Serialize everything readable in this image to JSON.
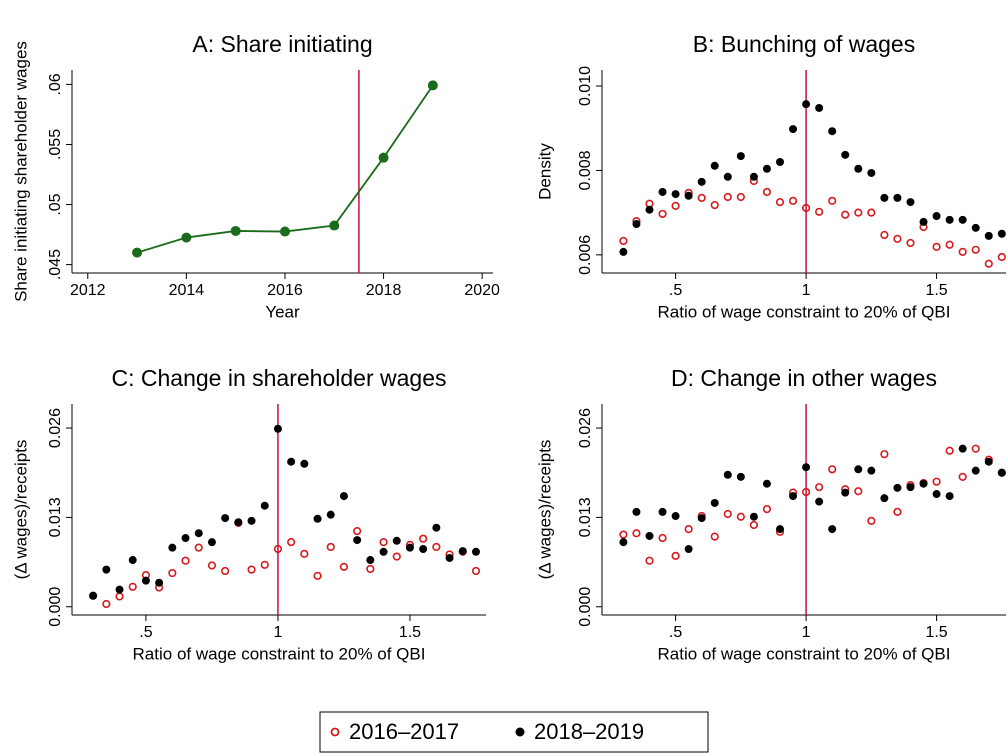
{
  "chart_data": [
    {
      "type": "line",
      "title": "A: Share initiating",
      "x_label": "Year",
      "y_label": "Share initiating shareholder wages",
      "x": [
        2013,
        2014,
        2015,
        2016,
        2017,
        2018,
        2019
      ],
      "series": [
        {
          "name": "Share initiating",
          "color": "#1a6b1a",
          "values": [
            0.046,
            0.04725,
            0.0478,
            0.04775,
            0.04825,
            0.0539,
            0.05992
          ]
        }
      ],
      "xlim": [
        2011.68,
        2020.22
      ],
      "xticks": [
        2012,
        2014,
        2016,
        2018,
        2020
      ],
      "ylim": [
        0.0443,
        0.0612
      ],
      "yticks": [
        {
          "value": 0.045,
          "label": ".045"
        },
        {
          "value": 0.05,
          "label": ".05"
        },
        {
          "value": 0.055,
          "label": ".055"
        },
        {
          "value": 0.06,
          "label": ".06"
        }
      ],
      "vline": 2017.5,
      "vline_color": "#c8103a"
    },
    {
      "type": "scatter",
      "title": "B: Bunching of wages",
      "x_label": "Ratio of wage constraint to 20% of QBI",
      "y_label": "Density",
      "x": [
        0.3,
        0.35,
        0.4,
        0.45,
        0.5,
        0.55,
        0.6,
        0.65,
        0.7,
        0.75,
        0.8,
        0.85,
        0.9,
        0.95,
        1.0,
        1.05,
        1.1,
        1.15,
        1.2,
        1.25,
        1.3,
        1.35,
        1.4,
        1.45,
        1.5,
        1.55,
        1.6,
        1.65,
        1.7,
        1.75
      ],
      "series": [
        {
          "name": "2016–2017",
          "color": "#d7191c",
          "values": [
            0.00633,
            0.0068,
            0.00721,
            0.00697,
            0.00716,
            0.00747,
            0.00735,
            0.00718,
            0.00737,
            0.00737,
            0.00775,
            0.00749,
            0.00725,
            0.00728,
            0.00711,
            0.00702,
            0.00728,
            0.00695,
            0.007,
            0.007,
            0.00647,
            0.00638,
            0.00628,
            0.00666,
            0.00619,
            0.00624,
            0.00607,
            0.00612,
            0.00579,
            0.00595
          ]
        },
        {
          "name": "2018–2019",
          "color": "#000000",
          "values": [
            0.00607,
            0.00673,
            0.00707,
            0.00749,
            0.00744,
            0.0074,
            0.00773,
            0.00811,
            0.00785,
            0.00834,
            0.00785,
            0.00804,
            0.0082,
            0.00898,
            0.00957,
            0.00948,
            0.00893,
            0.00837,
            0.00804,
            0.00794,
            0.00735,
            0.00735,
            0.00725,
            0.00678,
            0.00692,
            0.00683,
            0.00683,
            0.00664,
            0.00645,
            0.0065
          ]
        }
      ],
      "xlim": [
        0.218,
        1.766
      ],
      "xticks": [
        {
          "value": 0.5,
          "label": ".5"
        },
        1,
        1.5
      ],
      "ylim": [
        0.00557,
        0.01038
      ],
      "yticks": [
        {
          "value": 0.006,
          "label": "0.006"
        },
        {
          "value": 0.008,
          "label": "0.008"
        },
        {
          "value": 0.01,
          "label": "0.010"
        }
      ],
      "vline": 1,
      "vline_color": "#c8103a"
    },
    {
      "type": "scatter",
      "title": "C: Change in shareholder wages",
      "x_label": "Ratio of wage constraint to 20% of QBI",
      "y_label": "(Δ wages)/receipts",
      "x": [
        0.3,
        0.35,
        0.4,
        0.45,
        0.5,
        0.55,
        0.6,
        0.65,
        0.7,
        0.75,
        0.8,
        0.85,
        0.9,
        0.95,
        1.0,
        1.05,
        1.1,
        1.15,
        1.2,
        1.25,
        1.3,
        1.35,
        1.4,
        1.45,
        1.5,
        1.55,
        1.6,
        1.65,
        1.7,
        1.75
      ],
      "series": [
        {
          "name": "2016–2017",
          "color": "#d7191c",
          "values": [
            0.0016,
            0.0004,
            0.0015,
            0.0029,
            0.0046,
            0.0028,
            0.0049,
            0.0067,
            0.0086,
            0.006,
            0.0052,
            0.0122,
            0.0054,
            0.0061,
            0.0084,
            0.0094,
            0.0077,
            0.0045,
            0.0087,
            0.0058,
            0.011,
            0.0055,
            0.0094,
            0.0073,
            0.009,
            0.0099,
            0.0087,
            0.0076,
            0.008,
            0.0052
          ]
        },
        {
          "name": "2018–2019",
          "color": "#000000",
          "values": [
            0.0016,
            0.0054,
            0.0025,
            0.0068,
            0.0038,
            0.0035,
            0.0086,
            0.01,
            0.0107,
            0.0094,
            0.0129,
            0.0123,
            0.0125,
            0.0147,
            0.0259,
            0.0211,
            0.0208,
            0.0128,
            0.0134,
            0.0161,
            0.0097,
            0.0068,
            0.008,
            0.0096,
            0.0086,
            0.0084,
            0.0115,
            0.0071,
            0.0081,
            0.008
          ]
        }
      ],
      "xlim": [
        0.22,
        1.788
      ],
      "xticks": [
        {
          "value": 0.5,
          "label": ".5"
        },
        1,
        1.5
      ],
      "ylim": [
        -0.0012,
        0.0295
      ],
      "yticks": [
        {
          "value": 0,
          "label": "0.000"
        },
        {
          "value": 0.013,
          "label": "0.013"
        },
        {
          "value": 0.026,
          "label": "0.026"
        }
      ],
      "vline": 1,
      "vline_color": "#c8103a"
    },
    {
      "type": "scatter",
      "title": "D: Change in other wages",
      "x_label": "Ratio of wage constraint to 20% of QBI",
      "y_label": "(Δ wages)/receipts",
      "x": [
        0.3,
        0.35,
        0.4,
        0.45,
        0.5,
        0.55,
        0.6,
        0.65,
        0.7,
        0.75,
        0.8,
        0.85,
        0.9,
        0.95,
        1.0,
        1.05,
        1.1,
        1.15,
        1.2,
        1.25,
        1.3,
        1.35,
        1.4,
        1.45,
        1.5,
        1.55,
        1.6,
        1.65,
        1.7,
        1.75
      ],
      "series": [
        {
          "name": "2016–2017",
          "color": "#d7191c",
          "values": [
            0.0105,
            0.0107,
            0.0067,
            0.01,
            0.0074,
            0.0113,
            0.0132,
            0.0102,
            0.0135,
            0.0131,
            0.0119,
            0.0142,
            0.0109,
            0.0166,
            0.0167,
            0.0174,
            0.02,
            0.0171,
            0.0168,
            0.0125,
            0.0222,
            0.0138,
            0.0177,
            0.018,
            0.0182,
            0.0227,
            0.0189,
            0.023,
            0.0214,
            0.0195
          ]
        },
        {
          "name": "2018–2019",
          "color": "#000000",
          "values": [
            0.0094,
            0.0138,
            0.0103,
            0.0138,
            0.0132,
            0.0084,
            0.0129,
            0.0151,
            0.0192,
            0.0189,
            0.0131,
            0.0179,
            0.0113,
            0.0161,
            0.0203,
            0.0153,
            0.0113,
            0.0166,
            0.02,
            0.0198,
            0.0158,
            0.0173,
            0.0174,
            0.0179,
            0.0164,
            0.0161,
            0.023,
            0.0198,
            0.0211,
            0.0195
          ]
        }
      ],
      "xlim": [
        0.218,
        1.766
      ],
      "xticks": [
        {
          "value": 0.5,
          "label": ".5"
        },
        1,
        1.5
      ],
      "ylim": [
        -0.0012,
        0.0295
      ],
      "yticks": [
        {
          "value": 0,
          "label": "0.000"
        },
        {
          "value": 0.013,
          "label": "0.013"
        },
        {
          "value": 0.026,
          "label": "0.026"
        }
      ],
      "vline": 1,
      "vline_color": "#c8103a"
    }
  ]
}
